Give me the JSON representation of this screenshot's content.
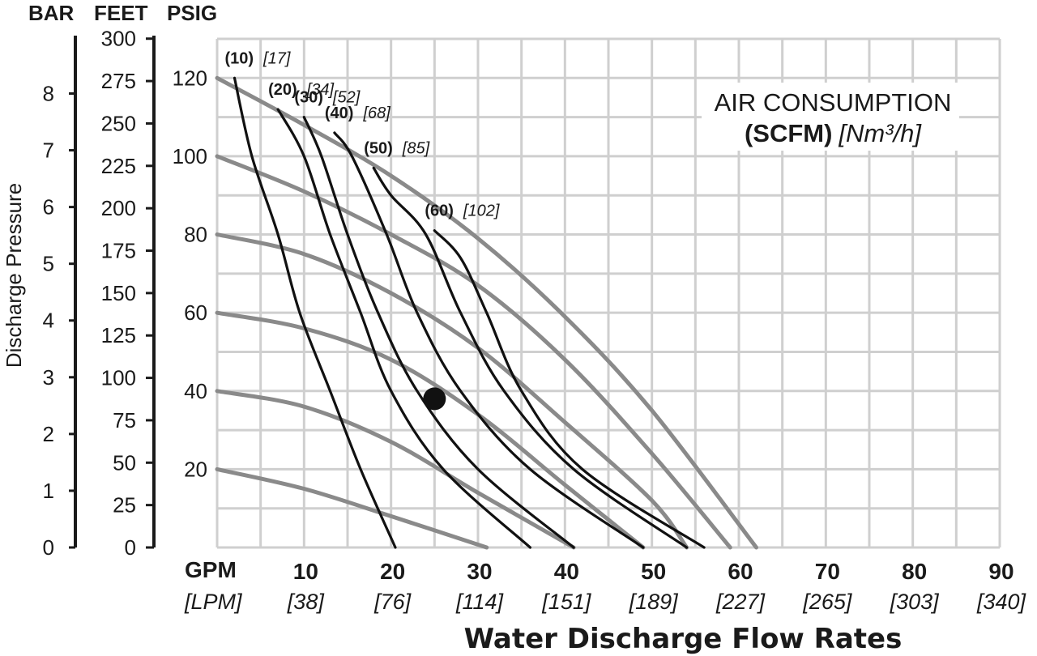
{
  "chart_data": {
    "type": "line",
    "xlabel": "Water Discharge Flow Rates",
    "ylabel": "Discharge Pressure",
    "x_unit_primary": "GPM",
    "x_unit_secondary": "[LPM]",
    "x_ticks": [
      {
        "gpm": "10",
        "lpm": "[38]"
      },
      {
        "gpm": "20",
        "lpm": "[76]"
      },
      {
        "gpm": "30",
        "lpm": "[114]"
      },
      {
        "gpm": "40",
        "lpm": "[151]"
      },
      {
        "gpm": "50",
        "lpm": "[189]"
      },
      {
        "gpm": "60",
        "lpm": "[227]"
      },
      {
        "gpm": "70",
        "lpm": "[265]"
      },
      {
        "gpm": "80",
        "lpm": "[303]"
      },
      {
        "gpm": "90",
        "lpm": "[340]"
      }
    ],
    "xlim": [
      0,
      90
    ],
    "ylim": [
      0,
      130
    ],
    "y_axes": [
      {
        "name": "BAR",
        "ticks": [
          "0",
          "1",
          "2",
          "3",
          "4",
          "5",
          "6",
          "7",
          "8"
        ],
        "values": [
          0,
          1,
          2,
          3,
          4,
          5,
          6,
          7,
          8
        ]
      },
      {
        "name": "FEET",
        "ticks": [
          "0",
          "25",
          "50",
          "75",
          "100",
          "125",
          "150",
          "175",
          "200",
          "225",
          "250",
          "275",
          "300"
        ],
        "values": [
          0,
          25,
          50,
          75,
          100,
          125,
          150,
          175,
          200,
          225,
          250,
          275,
          300
        ]
      },
      {
        "name": "PSIG",
        "ticks": [
          "20",
          "40",
          "60",
          "80",
          "100",
          "120"
        ],
        "values": [
          20,
          40,
          60,
          80,
          100,
          120
        ]
      }
    ],
    "legend": {
      "line1": "AIR CONSUMPTION",
      "line2_bold": "(SCFM)",
      "line2_italic": "[Nm³/h]"
    },
    "air_consumption_curves": [
      {
        "name": "(10)",
        "alt": "[17]",
        "points": [
          [
            2,
            120
          ],
          [
            4,
            100
          ],
          [
            7,
            80
          ],
          [
            9.5,
            60
          ],
          [
            13,
            40
          ],
          [
            16.5,
            20
          ],
          [
            20.5,
            0
          ]
        ]
      },
      {
        "name": "(20)",
        "alt": "[34]",
        "points": [
          [
            7,
            112
          ],
          [
            10,
            100
          ],
          [
            13,
            80
          ],
          [
            16.5,
            60
          ],
          [
            20,
            40
          ],
          [
            26,
            20
          ],
          [
            36,
            0
          ]
        ]
      },
      {
        "name": "(30)",
        "alt": "[52]",
        "points": [
          [
            10,
            110
          ],
          [
            12,
            100
          ],
          [
            15,
            80
          ],
          [
            18.5,
            60
          ],
          [
            23,
            40
          ],
          [
            30,
            20
          ],
          [
            41,
            0
          ]
        ]
      },
      {
        "name": "(40)",
        "alt": "[68]",
        "points": [
          [
            13.5,
            106
          ],
          [
            15.5,
            100
          ],
          [
            19.5,
            80
          ],
          [
            23,
            60
          ],
          [
            28,
            40
          ],
          [
            36,
            20
          ],
          [
            49,
            0
          ]
        ]
      },
      {
        "name": "(50)",
        "alt": "[85]",
        "points": [
          [
            18,
            97
          ],
          [
            20,
            90
          ],
          [
            24,
            80
          ],
          [
            28,
            60
          ],
          [
            33,
            40
          ],
          [
            41,
            20
          ],
          [
            54,
            0
          ]
        ]
      },
      {
        "name": "(60)",
        "alt": "[102]",
        "points": [
          [
            25,
            81
          ],
          [
            28,
            74
          ],
          [
            31,
            60
          ],
          [
            35,
            40
          ],
          [
            42,
            20
          ],
          [
            56,
            0
          ]
        ]
      }
    ],
    "pressure_curves": [
      {
        "name": "120 psig",
        "points": [
          [
            0,
            120
          ],
          [
            10,
            108
          ],
          [
            20,
            95
          ],
          [
            30,
            79
          ],
          [
            40,
            59
          ],
          [
            50,
            35
          ],
          [
            62,
            0
          ]
        ]
      },
      {
        "name": "100 psig",
        "points": [
          [
            0,
            100
          ],
          [
            10,
            91
          ],
          [
            20,
            80
          ],
          [
            30,
            67
          ],
          [
            40,
            48
          ],
          [
            50,
            24
          ],
          [
            59,
            0
          ]
        ]
      },
      {
        "name": "80 psig",
        "points": [
          [
            0,
            80
          ],
          [
            10,
            75
          ],
          [
            20,
            65
          ],
          [
            30,
            51
          ],
          [
            40,
            32
          ],
          [
            50,
            12
          ],
          [
            54,
            0
          ]
        ]
      },
      {
        "name": "60 psig",
        "points": [
          [
            0,
            60
          ],
          [
            10,
            56
          ],
          [
            20,
            48
          ],
          [
            30,
            34
          ],
          [
            40,
            16
          ],
          [
            49,
            0
          ]
        ]
      },
      {
        "name": "40 psig",
        "points": [
          [
            0,
            40
          ],
          [
            10,
            36
          ],
          [
            20,
            27
          ],
          [
            30,
            14
          ],
          [
            41,
            0
          ]
        ]
      },
      {
        "name": "20 psig",
        "points": [
          [
            0,
            20
          ],
          [
            10,
            15
          ],
          [
            20,
            8
          ],
          [
            31,
            0
          ]
        ]
      }
    ],
    "marker": {
      "x": 25,
      "y": 38
    }
  }
}
